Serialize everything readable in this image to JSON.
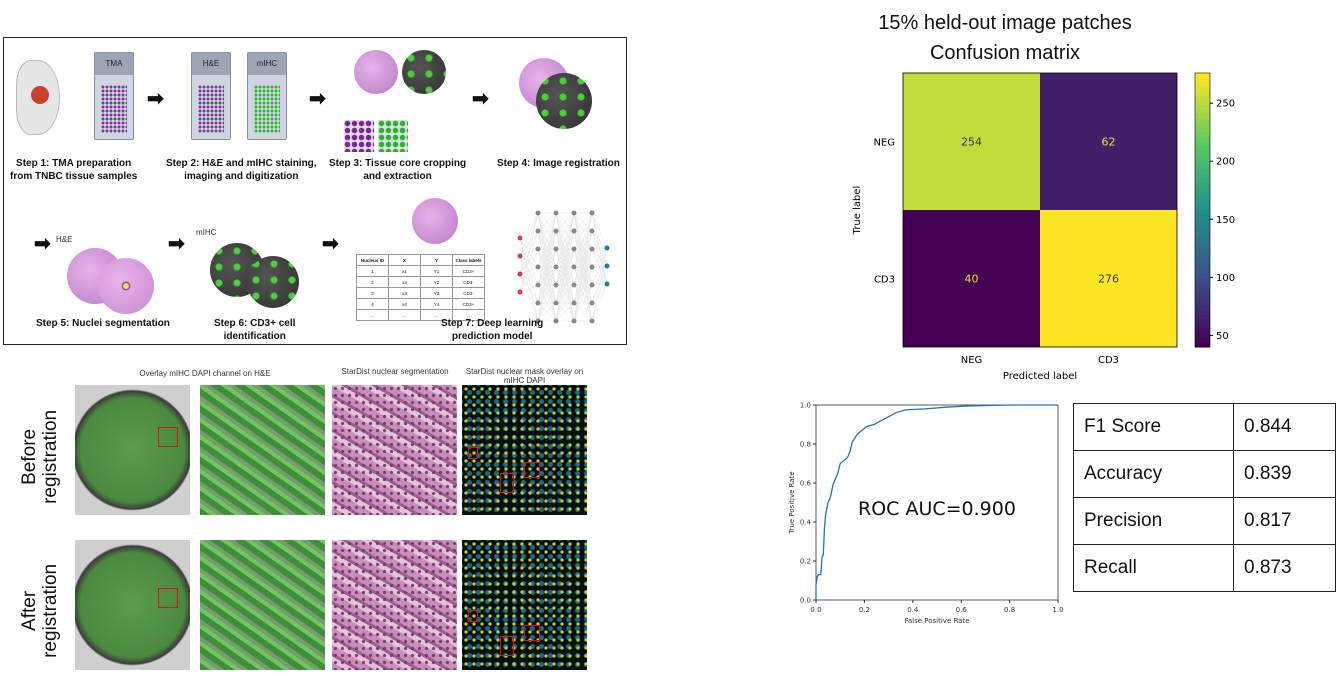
{
  "workflow": {
    "slide_labels": {
      "tma": "TMA",
      "he": "H&E",
      "mihc": "mIHC"
    },
    "panel_labels": {
      "he": "H&E",
      "mihc": "mIHC"
    },
    "steps": [
      {
        "line1": "Step 1:  TMA preparation",
        "line2": "from TNBC tissue samples"
      },
      {
        "line1": "Step 2: H&E and mIHC staining,",
        "line2": "imaging and digitization"
      },
      {
        "line1": "Step 3:  Tissue core cropping",
        "line2": "and extraction"
      },
      {
        "line1": "Step 4: Image registration",
        "line2": ""
      },
      {
        "line1": "Step 5:  Nuclei segmentation",
        "line2": ""
      },
      {
        "line1": "Step 6:  CD3+ cell",
        "line2": "identification"
      },
      {
        "line1": "Step 7:  Deep learning",
        "line2": "prediction model"
      }
    ],
    "table": {
      "headers": [
        "Nucleus ID",
        "X",
        "Y",
        "Class labels"
      ],
      "rows": [
        [
          "1",
          "x1",
          "Y1",
          "CD3+"
        ],
        [
          "2",
          "x2",
          "Y2",
          "CD3-"
        ],
        [
          "3",
          "x3",
          "Y3",
          "CD3-"
        ],
        [
          "4",
          "x4",
          "Y4",
          "CD3+"
        ],
        [
          "...",
          "...",
          "...",
          "..."
        ]
      ]
    }
  },
  "registration": {
    "col_headers": [
      "Overlay mIHC DAPI channel on H&E",
      "StarDist nuclear segmentation",
      "StarDist nuclear mask overlay on mIHC DAPI"
    ],
    "row_labels": [
      "Before registration",
      "After registration"
    ]
  },
  "chart_data": [
    {
      "type": "heatmap",
      "title": "15% held-out image patches",
      "subtitle": "Confusion matrix",
      "xlabel": "Predicted label",
      "ylabel": "True label",
      "x_categories": [
        "NEG",
        "CD3"
      ],
      "y_categories": [
        "NEG",
        "CD3"
      ],
      "values": [
        [
          254,
          62
        ],
        [
          40,
          276
        ]
      ],
      "colormap": "viridis",
      "colorbar_ticks": [
        50,
        100,
        150,
        200,
        250
      ],
      "colorbar_range": [
        40,
        276
      ]
    },
    {
      "type": "line",
      "xlabel": "False Positive Rate",
      "ylabel": "True Positive Rate",
      "xlim": [
        0,
        1
      ],
      "ylim": [
        0,
        1
      ],
      "xticks": [
        "0.0",
        "0.2",
        "0.4",
        "0.6",
        "0.8",
        "1.0"
      ],
      "yticks": [
        "0.0",
        "0.2",
        "0.4",
        "0.6",
        "0.8",
        "1.0"
      ],
      "annotation": "ROC AUC=0.900",
      "color": "#1f77b4",
      "x": [
        0,
        0,
        0.005,
        0.01,
        0.02,
        0.025,
        0.03,
        0.035,
        0.04,
        0.05,
        0.06,
        0.07,
        0.08,
        0.09,
        0.1,
        0.11,
        0.13,
        0.14,
        0.15,
        0.17,
        0.19,
        0.21,
        0.24,
        0.27,
        0.3,
        0.33,
        0.37,
        0.45,
        0.55,
        0.63,
        0.8,
        1.0
      ],
      "y": [
        0,
        0.08,
        0.12,
        0.13,
        0.13,
        0.22,
        0.23,
        0.37,
        0.44,
        0.5,
        0.53,
        0.59,
        0.62,
        0.65,
        0.7,
        0.71,
        0.73,
        0.76,
        0.81,
        0.85,
        0.87,
        0.89,
        0.9,
        0.92,
        0.94,
        0.96,
        0.975,
        0.98,
        0.99,
        0.995,
        1.0,
        1.0
      ]
    }
  ],
  "metrics": [
    {
      "label": "F1 Score",
      "value": "0.844"
    },
    {
      "label": "Accuracy",
      "value": "0.839"
    },
    {
      "label": "Precision",
      "value": "0.817"
    },
    {
      "label": "Recall",
      "value": "0.873"
    }
  ]
}
